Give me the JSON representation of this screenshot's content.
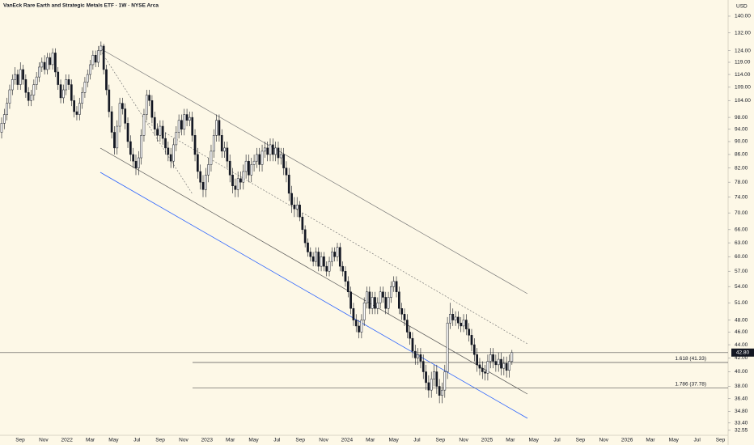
{
  "chart_data": {
    "type": "candlestick",
    "title": "VanEck Rare Earth and Strategic Metals ETF · 1W · NYSE Arca",
    "currency": "USD",
    "log_scale": true,
    "up_color": "#ffffff",
    "down_color": "#131722",
    "ylim": [
      31.8,
      148.2
    ],
    "yticks": [
      {
        "value": 140,
        "label": "140.00"
      },
      {
        "value": 132,
        "label": "132.00"
      },
      {
        "value": 124,
        "label": "124.00"
      },
      {
        "value": 119,
        "label": "119.00"
      },
      {
        "value": 114,
        "label": "114.00"
      },
      {
        "value": 109,
        "label": "109.00"
      },
      {
        "value": 104,
        "label": "104.00"
      },
      {
        "value": 98,
        "label": "98.00"
      },
      {
        "value": 94,
        "label": "94.00"
      },
      {
        "value": 90,
        "label": "90.00"
      },
      {
        "value": 86,
        "label": "86.00"
      },
      {
        "value": 82,
        "label": "82.00"
      },
      {
        "value": 78,
        "label": "78.00"
      },
      {
        "value": 74,
        "label": "74.00"
      },
      {
        "value": 70,
        "label": "70.00"
      },
      {
        "value": 66,
        "label": "66.00"
      },
      {
        "value": 63,
        "label": "63.00"
      },
      {
        "value": 60,
        "label": "60.00"
      },
      {
        "value": 57,
        "label": "57.00"
      },
      {
        "value": 54,
        "label": "54.00"
      },
      {
        "value": 51,
        "label": "51.00"
      },
      {
        "value": 48,
        "label": "48.00"
      },
      {
        "value": 46,
        "label": "46.00"
      },
      {
        "value": 44,
        "label": "44.00"
      },
      {
        "value": 42,
        "label": "42.00"
      },
      {
        "value": 40,
        "label": "40.00"
      },
      {
        "value": 38,
        "label": "38.00"
      },
      {
        "value": 36.4,
        "label": "36.40"
      },
      {
        "value": 34.8,
        "label": "34.80"
      },
      {
        "value": 33.4,
        "label": "33.40"
      },
      {
        "value": 32.55,
        "label": "32.55"
      }
    ],
    "x_labels": [
      "Sep",
      "Nov",
      "2022",
      "Mar",
      "May",
      "Jul",
      "Sep",
      "Nov",
      "2023",
      "Mar",
      "May",
      "Jul",
      "Sep",
      "Nov",
      "2024",
      "Mar",
      "May",
      "Jul",
      "Sep",
      "Nov",
      "2025",
      "Mar",
      "May",
      "Jul",
      "Sep",
      "Nov",
      "2026",
      "Mar",
      "May",
      "Jul",
      "Sep"
    ],
    "last_price": {
      "value": 42.8,
      "label": "42.80"
    },
    "levels": [
      {
        "value": 41.33,
        "label": "1.618 (41.33)"
      },
      {
        "value": 37.78,
        "label": "1.786 (37.78)"
      }
    ],
    "open": [
      93,
      96,
      99,
      103,
      108,
      112,
      114,
      110,
      116,
      112,
      107,
      104,
      106,
      110,
      113,
      117,
      119,
      116,
      121,
      118,
      123,
      115,
      110,
      105,
      108,
      112,
      110,
      104,
      100,
      99,
      103,
      107,
      111,
      114,
      118,
      122,
      119,
      124,
      126,
      116,
      108,
      100,
      93,
      88,
      95,
      103,
      101,
      96,
      90,
      86,
      84,
      82,
      85,
      92,
      99,
      106,
      104,
      98,
      94,
      92,
      95,
      91,
      88,
      86,
      84,
      89,
      93,
      97,
      94,
      99,
      97,
      98,
      92,
      86,
      81,
      78,
      76,
      80,
      83,
      87,
      92,
      97,
      92,
      87,
      88,
      84,
      80,
      77,
      76,
      79,
      78,
      81,
      84,
      80,
      83,
      84,
      86,
      83,
      87,
      88,
      86,
      89,
      86,
      88,
      85,
      86,
      82,
      80,
      75,
      72,
      71,
      72,
      69,
      66,
      63,
      61,
      60,
      59,
      61,
      58,
      60,
      58,
      57,
      59,
      61,
      60,
      62,
      58,
      57,
      55,
      53,
      50,
      48,
      47,
      46,
      48,
      51,
      53,
      50,
      52,
      50,
      51,
      53,
      52,
      50,
      52,
      54,
      55,
      53,
      50,
      49,
      48,
      46,
      45,
      43,
      42,
      42.5,
      41.5,
      40,
      38.5,
      37.5,
      39,
      40,
      38,
      36.8,
      37.5,
      40,
      47.5,
      49,
      48,
      48.5,
      47.5,
      47,
      48,
      46.5,
      45.5,
      44,
      42.5,
      41,
      40.5,
      40,
      39.8,
      41.5,
      42.5,
      41.5,
      41,
      41.8,
      40.5,
      41.2,
      40.2,
      41.5
    ],
    "high": [
      98,
      101,
      105,
      110,
      114,
      117,
      116,
      119,
      118,
      114,
      109,
      108,
      112,
      115,
      119,
      121,
      122,
      123,
      123,
      125,
      125,
      117,
      112,
      110,
      114,
      114,
      112,
      106,
      102,
      105,
      109,
      113,
      116,
      120,
      124,
      124,
      126,
      128,
      127,
      118,
      110,
      102,
      95,
      97,
      105,
      105,
      103,
      98,
      92,
      88,
      86,
      87,
      94,
      101,
      108,
      108,
      106,
      100,
      96,
      97,
      97,
      93,
      90,
      88,
      91,
      95,
      99,
      99,
      101,
      101,
      100,
      100,
      94,
      88,
      83,
      80,
      82,
      85,
      89,
      94,
      99,
      99,
      94,
      90,
      90,
      86,
      82,
      79,
      81,
      81,
      83,
      86,
      86,
      85,
      86,
      88,
      88,
      89,
      90,
      90,
      91,
      91,
      90,
      90,
      88,
      88,
      84,
      82,
      77,
      74,
      74,
      73,
      70,
      67,
      64,
      62,
      61,
      62,
      62,
      61,
      61,
      59,
      60,
      62,
      62,
      63,
      63,
      59,
      58,
      56,
      54,
      51,
      49,
      48,
      49,
      52,
      54,
      54,
      53,
      53,
      52,
      54,
      54,
      53,
      53,
      55,
      56,
      56,
      54,
      51,
      50,
      49,
      47,
      46,
      44,
      43.5,
      43.5,
      42.5,
      41,
      39.5,
      40,
      41,
      41,
      39,
      38.5,
      41,
      48.5,
      51,
      50,
      49.5,
      49.5,
      48.5,
      49,
      49,
      47.5,
      46.5,
      45,
      43.5,
      42,
      41.5,
      41,
      42.5,
      43.5,
      43.5,
      42.5,
      42.8,
      42.8,
      42.2,
      42.2,
      42.5,
      43.2
    ],
    "low": [
      91,
      94,
      97,
      101,
      106,
      110,
      108,
      108,
      110,
      105,
      102,
      102,
      104,
      108,
      111,
      115,
      114,
      114,
      116,
      116,
      113,
      108,
      103,
      103,
      106,
      108,
      102,
      98,
      97,
      97,
      101,
      105,
      109,
      112,
      116,
      117,
      117,
      122,
      114,
      106,
      98,
      91,
      86,
      86,
      93,
      99,
      94,
      88,
      84,
      82,
      80,
      80,
      83,
      90,
      97,
      102,
      96,
      92,
      90,
      90,
      89,
      86,
      84,
      82,
      82,
      87,
      91,
      92,
      92,
      95,
      95,
      90,
      84,
      79,
      76,
      74,
      74,
      78,
      81,
      85,
      90,
      90,
      85,
      85,
      82,
      78,
      75,
      74,
      74,
      76,
      76,
      79,
      78,
      78,
      81,
      82,
      81,
      81,
      85,
      84,
      84,
      84,
      84,
      83,
      83,
      80,
      78,
      73,
      70,
      69,
      69,
      68,
      65,
      62,
      60,
      59,
      58,
      58,
      57,
      57,
      57,
      56,
      56,
      58,
      59,
      59,
      57,
      56,
      54,
      52,
      49,
      47,
      46,
      45,
      45,
      47,
      50,
      49,
      49,
      49,
      49,
      50,
      51,
      49,
      49,
      51,
      53,
      52,
      49,
      48,
      47,
      45,
      44,
      42,
      41,
      41,
      40.5,
      39,
      37.5,
      36.5,
      36.5,
      38,
      37,
      35.8,
      35.8,
      36.5,
      39,
      46.5,
      47,
      47,
      46.5,
      46,
      46,
      45.5,
      44.5,
      43,
      41.5,
      40,
      39.5,
      39,
      38.8,
      38.8,
      40.5,
      40.5,
      40,
      40,
      39.5,
      39.5,
      39.2,
      39.2,
      41
    ],
    "close": [
      96,
      99,
      103,
      108,
      112,
      114,
      110,
      116,
      112,
      107,
      104,
      106,
      110,
      113,
      117,
      119,
      116,
      121,
      118,
      123,
      115,
      110,
      105,
      108,
      112,
      110,
      104,
      100,
      99,
      103,
      107,
      111,
      114,
      118,
      122,
      119,
      124,
      126,
      116,
      108,
      100,
      93,
      88,
      95,
      103,
      101,
      96,
      90,
      86,
      84,
      82,
      85,
      92,
      99,
      106,
      104,
      98,
      94,
      92,
      95,
      91,
      88,
      86,
      84,
      89,
      93,
      97,
      94,
      99,
      97,
      98,
      92,
      86,
      81,
      78,
      76,
      80,
      83,
      87,
      92,
      97,
      92,
      87,
      88,
      84,
      80,
      77,
      76,
      79,
      78,
      81,
      84,
      80,
      83,
      84,
      86,
      83,
      87,
      88,
      86,
      89,
      86,
      88,
      85,
      86,
      82,
      80,
      75,
      72,
      71,
      72,
      69,
      66,
      63,
      61,
      60,
      59,
      61,
      58,
      60,
      58,
      57,
      59,
      61,
      60,
      62,
      58,
      57,
      55,
      53,
      50,
      48,
      47,
      46,
      48,
      51,
      53,
      50,
      52,
      50,
      51,
      53,
      52,
      50,
      52,
      54,
      55,
      53,
      50,
      49,
      48,
      46,
      45,
      43,
      42,
      42.5,
      41.5,
      40,
      38.5,
      37.5,
      39,
      40,
      38,
      36.8,
      37.5,
      40,
      47.5,
      49,
      48,
      48.5,
      47.5,
      47,
      48,
      46.5,
      45.5,
      44,
      42.5,
      41,
      40.5,
      40,
      39.8,
      41.5,
      42.5,
      41.5,
      41,
      41.8,
      40.5,
      41.2,
      40.2,
      41.5,
      42.8
    ]
  }
}
